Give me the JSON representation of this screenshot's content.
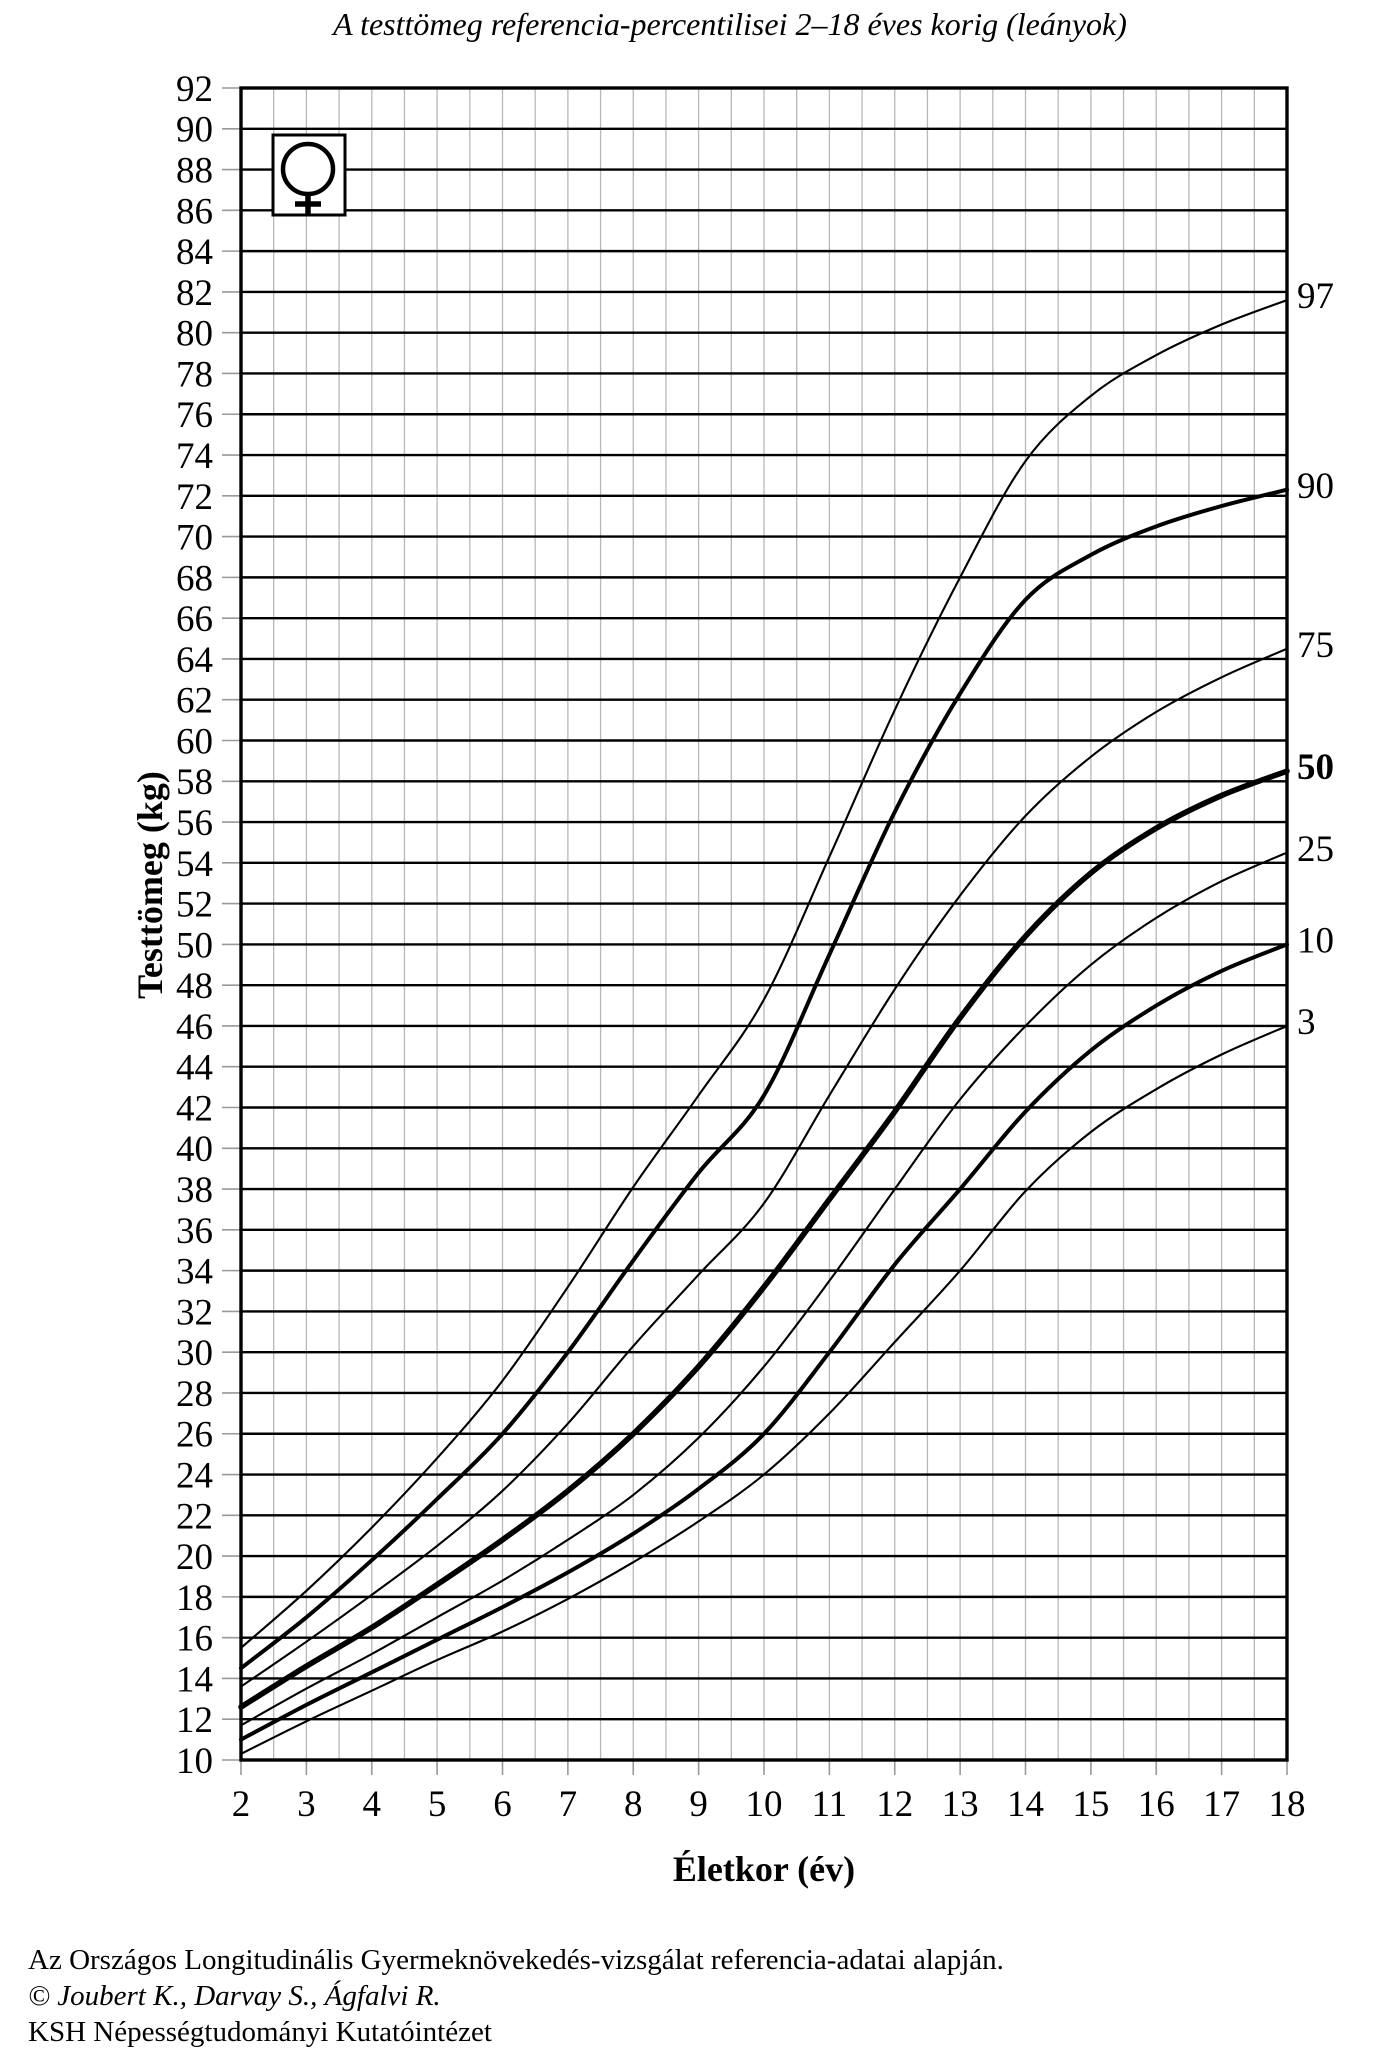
{
  "title": "A testtömeg referencia-percentilisei 2–18 éves korig (leányok)",
  "icon": "female-venus-symbol",
  "axes": {
    "x": {
      "label": "Életkor (év)",
      "min": 2,
      "max": 18,
      "tick_step": 1,
      "grid_step": 0.5
    },
    "y": {
      "label": "Testtömeg (kg)",
      "min": 10,
      "max": 92,
      "tick_step": 2,
      "grid_step": 2
    }
  },
  "chart_data": {
    "type": "line",
    "title": "A testtömeg referencia-percentilisei 2–18 éves korig (leányok)",
    "xlabel": "Életkor (év)",
    "ylabel": "Testtömeg (kg)",
    "xlim": [
      2,
      18
    ],
    "ylim": [
      10,
      92
    ],
    "grid": "on",
    "legend_position": "right-edge-curve-labels",
    "x": [
      2,
      3,
      4,
      5,
      6,
      7,
      8,
      9,
      10,
      11,
      12,
      13,
      14,
      15,
      16,
      17,
      18
    ],
    "series": [
      {
        "name": "97",
        "percentile": 97,
        "weight": "thin",
        "bold_label": false,
        "values": [
          15.5,
          18.3,
          21.4,
          24.8,
          28.6,
          33.2,
          38.1,
          42.6,
          47.3,
          54.3,
          61.5,
          68.0,
          73.7,
          76.9,
          78.9,
          80.4,
          81.6
        ]
      },
      {
        "name": "90",
        "percentile": 90,
        "weight": "thick",
        "bold_label": false,
        "values": [
          14.5,
          17.0,
          19.8,
          22.8,
          26.0,
          30.0,
          34.5,
          38.8,
          42.6,
          49.5,
          56.5,
          62.3,
          66.9,
          69.1,
          70.5,
          71.5,
          72.3
        ]
      },
      {
        "name": "75",
        "percentile": 75,
        "weight": "thin",
        "bold_label": false,
        "values": [
          13.6,
          15.8,
          18.1,
          20.5,
          23.2,
          26.5,
          30.3,
          33.8,
          37.3,
          42.6,
          47.8,
          52.4,
          56.3,
          59.2,
          61.4,
          63.1,
          64.5
        ]
      },
      {
        "name": "50",
        "percentile": 50,
        "weight": "boldest",
        "bold_label": true,
        "values": [
          12.6,
          14.6,
          16.5,
          18.6,
          20.8,
          23.2,
          26.0,
          29.3,
          33.2,
          37.5,
          41.8,
          46.4,
          50.4,
          53.5,
          55.7,
          57.3,
          58.5
        ]
      },
      {
        "name": "25",
        "percentile": 25,
        "weight": "thin",
        "bold_label": false,
        "values": [
          11.7,
          13.5,
          15.2,
          17.0,
          18.8,
          20.8,
          23.0,
          25.8,
          29.3,
          33.5,
          38.0,
          42.4,
          46.0,
          49.0,
          51.3,
          53.1,
          54.5
        ]
      },
      {
        "name": "10",
        "percentile": 10,
        "weight": "thick",
        "bold_label": false,
        "values": [
          11.0,
          12.7,
          14.3,
          15.9,
          17.5,
          19.2,
          21.1,
          23.3,
          26.0,
          30.0,
          34.3,
          38.0,
          41.8,
          44.8,
          47.0,
          48.7,
          50.0
        ]
      },
      {
        "name": "3",
        "percentile": 3,
        "weight": "thin",
        "bold_label": false,
        "values": [
          10.3,
          11.9,
          13.4,
          14.9,
          16.3,
          17.9,
          19.7,
          21.7,
          24.0,
          27.0,
          30.5,
          34.0,
          37.9,
          40.8,
          42.9,
          44.6,
          46.0
        ]
      }
    ]
  },
  "colors": {
    "curve": "#000000",
    "major_grid": "#000000",
    "minor_grid": "#b8b8b8",
    "tick": "#999999",
    "border": "#000000",
    "background": "#ffffff"
  },
  "footer": {
    "lines": [
      "Az Országos Longitudinális Gyermeknövekedés-vizsgálat referencia-adatai alapján.",
      "© Joubert K., Darvay S., Ágfalvi R.",
      "KSH Népességtudományi Kutatóintézet"
    ]
  }
}
